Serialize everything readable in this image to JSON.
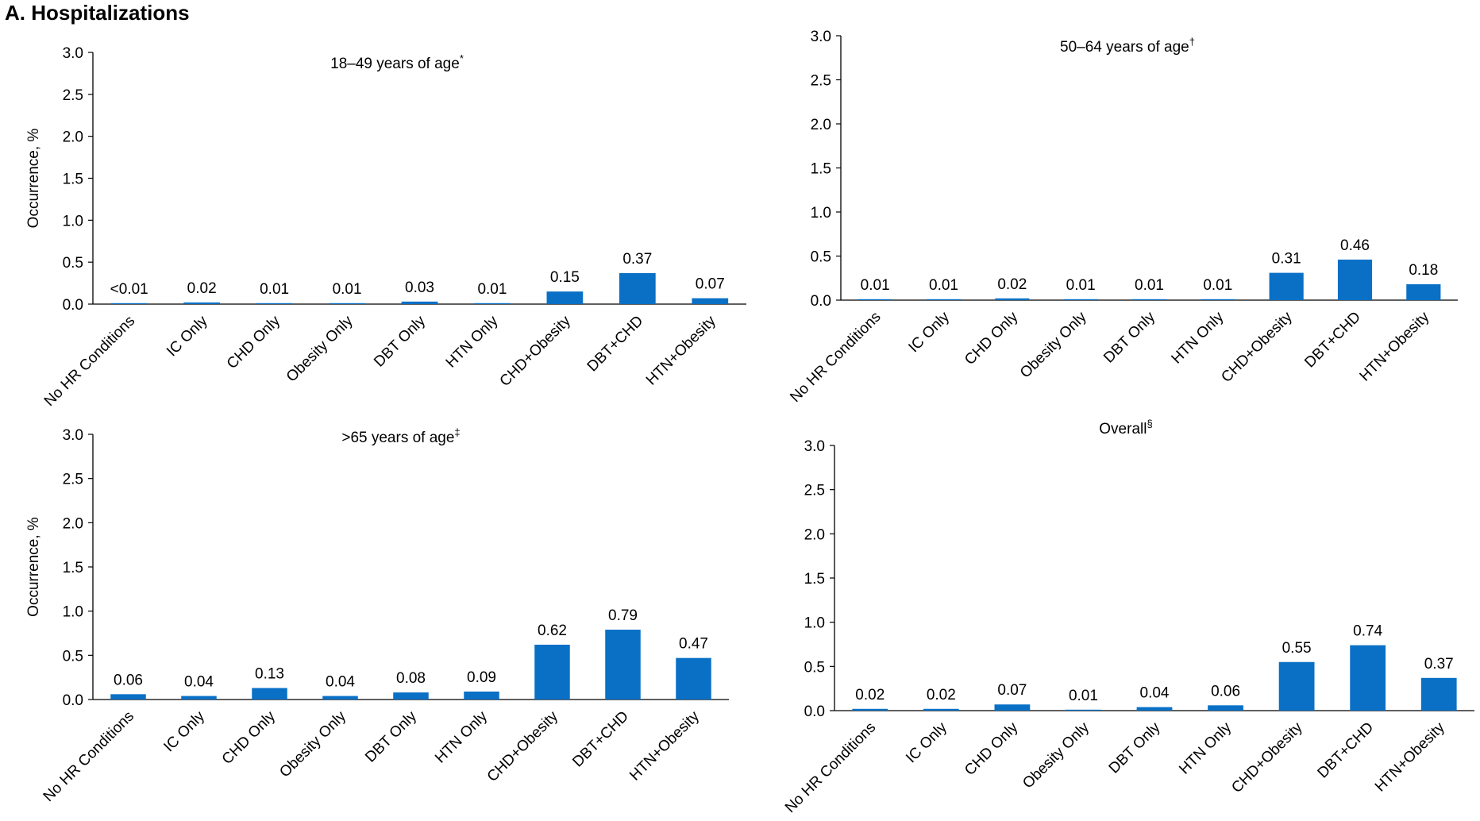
{
  "page": {
    "title": "A. Hospitalizations"
  },
  "colors": {
    "bar": "#0a70c6",
    "axis": "#000000"
  },
  "chart_data": [
    {
      "type": "bar",
      "title": "18–49 years of age",
      "title_mark": "*",
      "xlabel": "",
      "ylabel": "Occurrence, %",
      "ylim": [
        0,
        3.0
      ],
      "yticks": [
        "0.0",
        "0.5",
        "1.0",
        "1.5",
        "2.0",
        "2.5",
        "3.0"
      ],
      "grid": false,
      "categories": [
        "No HR Conditions",
        "IC Only",
        "CHD Only",
        "Obesity Only",
        "DBT Only",
        "HTN Only",
        "CHD+Obesity",
        "DBT+CHD",
        "HTN+Obesity"
      ],
      "values": [
        0.005,
        0.02,
        0.01,
        0.01,
        0.03,
        0.01,
        0.15,
        0.37,
        0.07
      ],
      "data_labels": [
        "<0.01",
        "0.02",
        "0.01",
        "0.01",
        "0.03",
        "0.01",
        "0.15",
        "0.37",
        "0.07"
      ]
    },
    {
      "type": "bar",
      "title": "50–64 years of age",
      "title_mark": "†",
      "xlabel": "",
      "ylabel": "",
      "ylim": [
        0,
        3.0
      ],
      "yticks": [
        "0.0",
        "0.5",
        "1.0",
        "1.5",
        "2.0",
        "2.5",
        "3.0"
      ],
      "grid": false,
      "categories": [
        "No HR Conditions",
        "IC Only",
        "CHD Only",
        "Obesity Only",
        "DBT Only",
        "HTN Only",
        "CHD+Obesity",
        "DBT+CHD",
        "HTN+Obesity"
      ],
      "values": [
        0.01,
        0.01,
        0.02,
        0.01,
        0.01,
        0.01,
        0.31,
        0.46,
        0.18
      ],
      "data_labels": [
        "0.01",
        "0.01",
        "0.02",
        "0.01",
        "0.01",
        "0.01",
        "0.31",
        "0.46",
        "0.18"
      ]
    },
    {
      "type": "bar",
      "title": ">65 years of age",
      "title_mark": "‡",
      "xlabel": "",
      "ylabel": "Occurrence, %",
      "ylim": [
        0,
        3.0
      ],
      "yticks": [
        "0.0",
        "0.5",
        "1.0",
        "1.5",
        "2.0",
        "2.5",
        "3.0"
      ],
      "grid": false,
      "categories": [
        "No HR Conditions",
        "IC Only",
        "CHD Only",
        "Obesity Only",
        "DBT Only",
        "HTN Only",
        "CHD+Obesity",
        "DBT+CHD",
        "HTN+Obesity"
      ],
      "values": [
        0.06,
        0.04,
        0.13,
        0.04,
        0.08,
        0.09,
        0.62,
        0.79,
        0.47
      ],
      "data_labels": [
        "0.06",
        "0.04",
        "0.13",
        "0.04",
        "0.08",
        "0.09",
        "0.62",
        "0.79",
        "0.47"
      ]
    },
    {
      "type": "bar",
      "title": "Overall",
      "title_mark": "§",
      "xlabel": "",
      "ylabel": "",
      "ylim": [
        0,
        3.0
      ],
      "yticks": [
        "0.0",
        "0.5",
        "1.0",
        "1.5",
        "2.0",
        "2.5",
        "3.0"
      ],
      "grid": false,
      "categories": [
        "No HR Conditions",
        "IC Only",
        "CHD Only",
        "Obesity Only",
        "DBT Only",
        "HTN Only",
        "CHD+Obesity",
        "DBT+CHD",
        "HTN+Obesity"
      ],
      "values": [
        0.02,
        0.02,
        0.07,
        0.01,
        0.04,
        0.06,
        0.55,
        0.74,
        0.37
      ],
      "data_labels": [
        "0.02",
        "0.02",
        "0.07",
        "0.01",
        "0.04",
        "0.06",
        "0.55",
        "0.74",
        "0.37"
      ]
    }
  ]
}
